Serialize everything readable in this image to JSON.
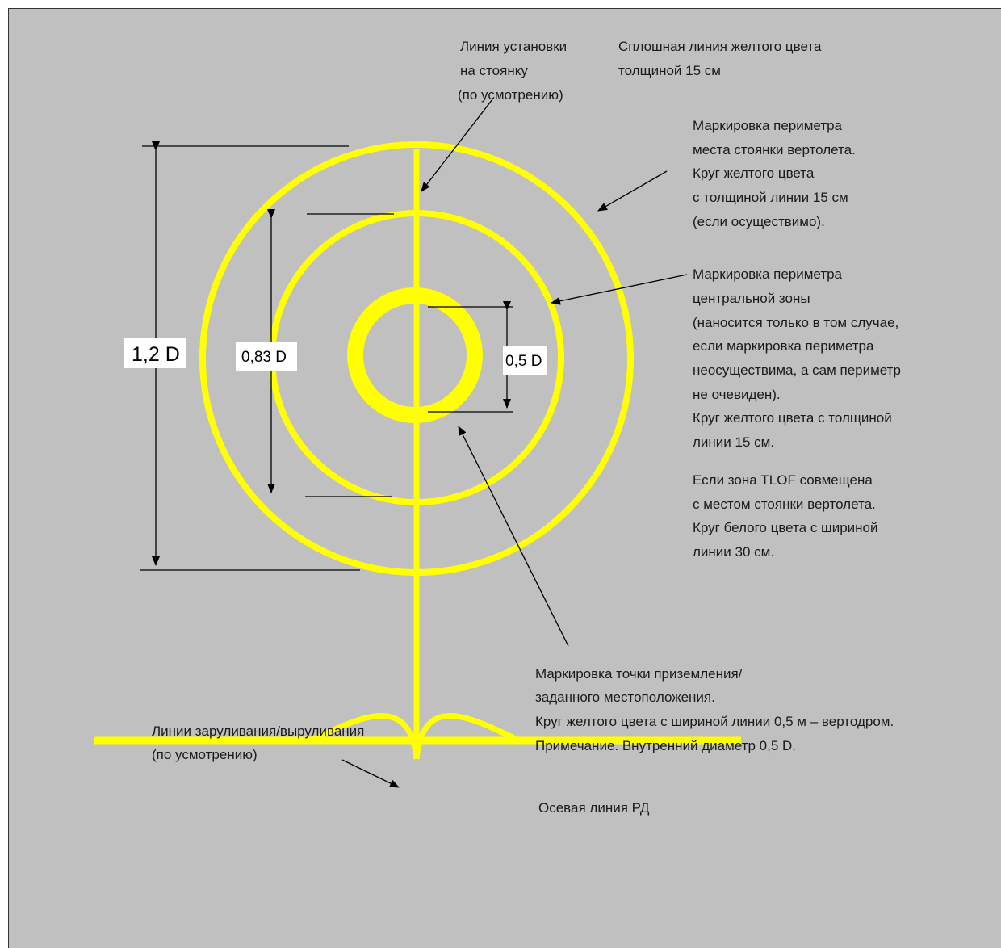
{
  "colors": {
    "background": "#c0c0c0",
    "marking_yellow": "#ffff00",
    "line": "#000000",
    "label_box": "#ffffff"
  },
  "dimensions": {
    "outer": "1,2 D",
    "middle": "0,83 D",
    "inner": "0,5 D"
  },
  "annotations": {
    "parking_line": [
      "Линия установки",
      "на стоянку",
      "(по усмотрению)"
    ],
    "solid_line": [
      "Сплошная линия желтого цвета",
      "толщиной 15 см"
    ],
    "stand_perimeter": [
      "Маркировка периметра",
      "места стоянки вертолета.",
      "Круг желтого цвета",
      "с толщиной линии 15 см",
      "(если осуществимо)."
    ],
    "central_zone": [
      "Маркировка периметра",
      "центральной зоны",
      "(наносится только в том случае,",
      "если маркировка периметра",
      "неосуществима, а сам периметр",
      "не очевиден).",
      "Круг желтого цвета с толщиной",
      "линии 15 см."
    ],
    "tlof": [
      "Если зона TLOF совмещена",
      "с местом стоянки вертолета.",
      "Круг белого цвета с шириной",
      "линии 30 см."
    ],
    "touchdown": [
      "Маркировка точки приземления/",
      "заданного местоположения.",
      "Круг желтого цвета с шириной линии 0,5 м – вертодром.",
      "Примечание. Внутренний диаметр 0,5 D."
    ],
    "taxi_lines": [
      "Линии заруливания/выруливания",
      "(по усмотрению)"
    ],
    "centerline": "Осевая линия РД"
  }
}
